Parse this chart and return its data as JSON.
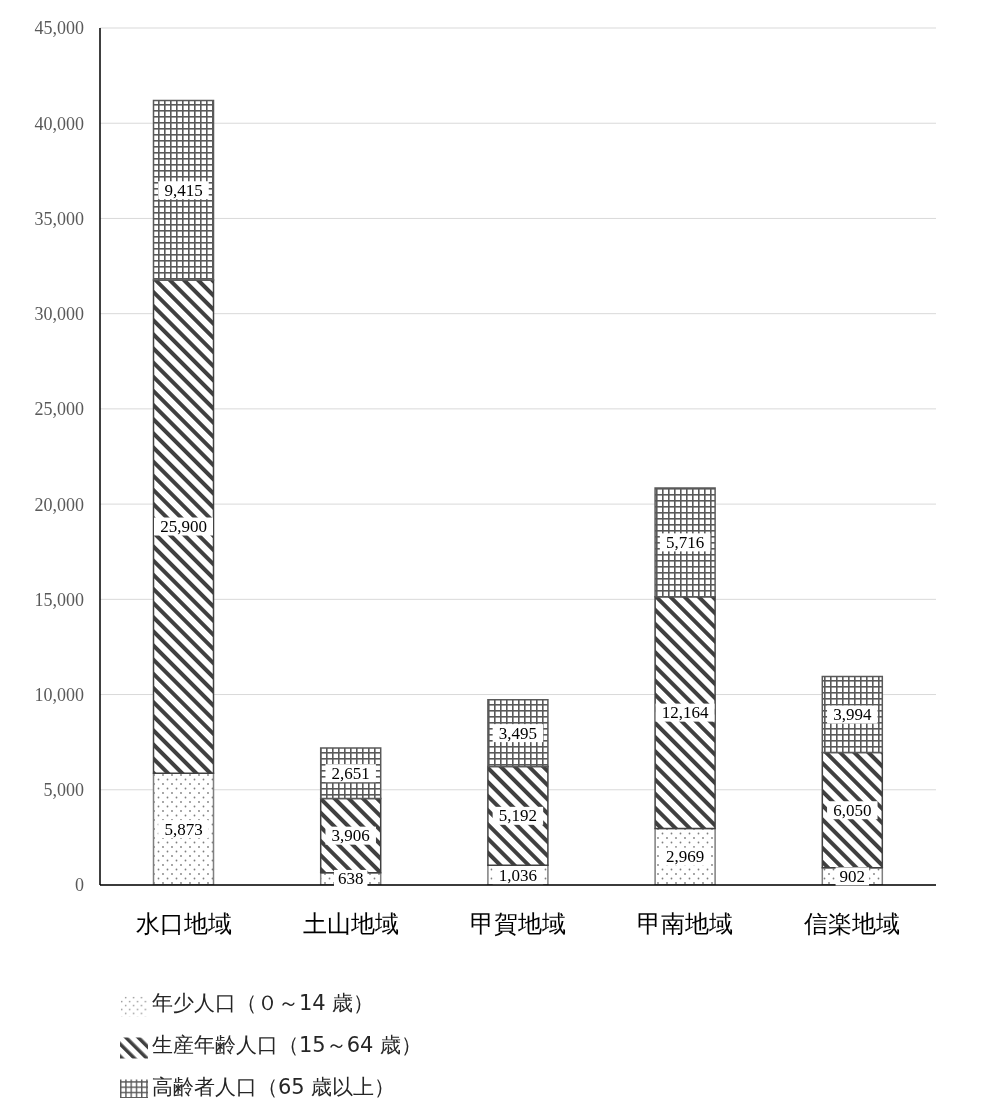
{
  "chart_data": {
    "type": "bar",
    "stacked": true,
    "categories": [
      "水口地域",
      "土山地域",
      "甲賀地域",
      "甲南地域",
      "信楽地域"
    ],
    "series": [
      {
        "name": "年少人口（０～14 歳）",
        "color": "#7f7f7f",
        "values": [
          5873,
          638,
          1036,
          2969,
          902
        ],
        "value_labels": [
          "5,873",
          "638",
          "1,036",
          "2,969",
          "902"
        ]
      },
      {
        "name": "生産年齢人口（15～64 歳）",
        "color": "#404040",
        "values": [
          25900,
          3906,
          5192,
          12164,
          6050
        ],
        "value_labels": [
          "25,900",
          "3,906",
          "5,192",
          "12,164",
          "6,050"
        ]
      },
      {
        "name": "高齢者人口（65 歳以上）",
        "color": "#595959",
        "values": [
          9415,
          2651,
          3495,
          5716,
          3994
        ],
        "value_labels": [
          "9,415",
          "2,651",
          "3,495",
          "5,716",
          "3,994"
        ]
      }
    ],
    "ylim": [
      0,
      45000
    ],
    "yticks": [
      0,
      {
        "value": 5000,
        "label": "5,000"
      },
      {
        "value": 10000,
        "label": "10,000"
      },
      {
        "value": 15000,
        "label": "15,000"
      },
      {
        "value": 20000,
        "label": "20,000"
      },
      {
        "value": 25000,
        "label": "25,000"
      },
      {
        "value": 30000,
        "label": "30,000"
      },
      {
        "value": 35000,
        "label": "35,000"
      },
      {
        "value": 40000,
        "label": "40,000"
      },
      {
        "value": 45000,
        "label": "45,000"
      }
    ],
    "grid": "y",
    "legend": "bottom"
  }
}
